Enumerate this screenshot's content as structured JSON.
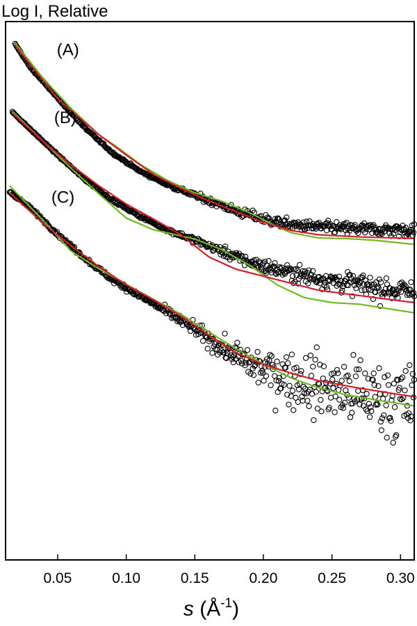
{
  "chart_data": {
    "type": "scatter",
    "title": "",
    "ylabel": "Log I, Relative",
    "xlabel": {
      "symbol": "s",
      "unit_open": " (Å",
      "unit_exp": "-1",
      "unit_close": ")"
    },
    "xlim": [
      0.012,
      0.31
    ],
    "ylim_relative": [
      0,
      1
    ],
    "log_y": true,
    "y_tick_labels_shown": false,
    "grid": false,
    "legend": "none",
    "x_ticks": [
      0.05,
      0.1,
      0.15,
      0.2,
      0.25,
      0.3
    ],
    "x_tick_labels": [
      "0.05",
      "0.10",
      "0.15",
      "0.20",
      "0.25",
      "0.30"
    ],
    "colors": {
      "data_markers": "#000000",
      "red_fit": "#d81b2b",
      "green_fit": "#6dbb1f"
    },
    "series": [
      {
        "label": "(A)",
        "s_start": 0.019,
        "data_start": 0.958,
        "data_profile": [
          [
            0.019,
            0.958
          ],
          [
            0.03,
            0.915
          ],
          [
            0.05,
            0.858
          ],
          [
            0.07,
            0.802
          ],
          [
            0.09,
            0.756
          ],
          [
            0.11,
            0.722
          ],
          [
            0.13,
            0.697
          ],
          [
            0.15,
            0.677
          ],
          [
            0.17,
            0.658
          ],
          [
            0.18,
            0.648
          ],
          [
            0.2,
            0.633
          ],
          [
            0.22,
            0.622
          ],
          [
            0.25,
            0.617
          ],
          [
            0.28,
            0.614
          ],
          [
            0.31,
            0.612
          ]
        ],
        "scatter_sd": [
          [
            0.019,
            0.001
          ],
          [
            0.12,
            0.002
          ],
          [
            0.16,
            0.005
          ],
          [
            0.2,
            0.008
          ],
          [
            0.25,
            0.009
          ],
          [
            0.31,
            0.011
          ]
        ],
        "red_fit": [
          [
            0.019,
            0.956
          ],
          [
            0.05,
            0.857
          ],
          [
            0.08,
            0.79
          ],
          [
            0.1,
            0.752
          ],
          [
            0.12,
            0.716
          ],
          [
            0.14,
            0.69
          ],
          [
            0.16,
            0.667
          ],
          [
            0.18,
            0.647
          ],
          [
            0.2,
            0.627
          ],
          [
            0.22,
            0.612
          ],
          [
            0.24,
            0.604
          ],
          [
            0.27,
            0.6
          ],
          [
            0.31,
            0.597
          ]
        ],
        "green_fit": [
          [
            0.019,
            0.96
          ],
          [
            0.04,
            0.893
          ],
          [
            0.06,
            0.838
          ],
          [
            0.08,
            0.79
          ],
          [
            0.095,
            0.764
          ],
          [
            0.11,
            0.735
          ],
          [
            0.13,
            0.705
          ],
          [
            0.15,
            0.682
          ],
          [
            0.17,
            0.666
          ],
          [
            0.19,
            0.645
          ],
          [
            0.21,
            0.619
          ],
          [
            0.22,
            0.608
          ],
          [
            0.24,
            0.598
          ],
          [
            0.26,
            0.597
          ],
          [
            0.28,
            0.594
          ],
          [
            0.31,
            0.586
          ]
        ]
      },
      {
        "label": "(B)",
        "s_start": 0.017,
        "data_start": 0.832,
        "data_profile": [
          [
            0.017,
            0.832
          ],
          [
            0.03,
            0.8
          ],
          [
            0.05,
            0.752
          ],
          [
            0.07,
            0.706
          ],
          [
            0.09,
            0.668
          ],
          [
            0.11,
            0.638
          ],
          [
            0.13,
            0.613
          ],
          [
            0.15,
            0.594
          ],
          [
            0.17,
            0.573
          ],
          [
            0.19,
            0.553
          ],
          [
            0.21,
            0.539
          ],
          [
            0.23,
            0.528
          ],
          [
            0.25,
            0.519
          ],
          [
            0.28,
            0.507
          ],
          [
            0.31,
            0.496
          ]
        ],
        "scatter_sd": [
          [
            0.017,
            0.001
          ],
          [
            0.12,
            0.002
          ],
          [
            0.16,
            0.006
          ],
          [
            0.2,
            0.011
          ],
          [
            0.25,
            0.015
          ],
          [
            0.31,
            0.02
          ]
        ],
        "red_fit": [
          [
            0.017,
            0.83
          ],
          [
            0.04,
            0.776
          ],
          [
            0.06,
            0.733
          ],
          [
            0.08,
            0.695
          ],
          [
            0.1,
            0.661
          ],
          [
            0.12,
            0.633
          ],
          [
            0.14,
            0.604
          ],
          [
            0.16,
            0.563
          ],
          [
            0.18,
            0.54
          ],
          [
            0.2,
            0.527
          ],
          [
            0.22,
            0.514
          ],
          [
            0.24,
            0.501
          ],
          [
            0.27,
            0.491
          ],
          [
            0.31,
            0.478
          ]
        ],
        "green_fit": [
          [
            0.017,
            0.833
          ],
          [
            0.04,
            0.776
          ],
          [
            0.06,
            0.727
          ],
          [
            0.08,
            0.68
          ],
          [
            0.1,
            0.635
          ],
          [
            0.12,
            0.613
          ],
          [
            0.14,
            0.602
          ],
          [
            0.15,
            0.596
          ],
          [
            0.17,
            0.576
          ],
          [
            0.19,
            0.547
          ],
          [
            0.21,
            0.511
          ],
          [
            0.23,
            0.487
          ],
          [
            0.25,
            0.478
          ],
          [
            0.27,
            0.475
          ],
          [
            0.29,
            0.467
          ],
          [
            0.31,
            0.459
          ]
        ]
      },
      {
        "label": "(C)",
        "s_start": 0.015,
        "data_start": 0.684,
        "data_profile": [
          [
            0.015,
            0.684
          ],
          [
            0.03,
            0.654
          ],
          [
            0.05,
            0.605
          ],
          [
            0.07,
            0.56
          ],
          [
            0.09,
            0.52
          ],
          [
            0.11,
            0.49
          ],
          [
            0.13,
            0.46
          ],
          [
            0.15,
            0.428
          ],
          [
            0.17,
            0.393
          ],
          [
            0.19,
            0.364
          ],
          [
            0.21,
            0.345
          ],
          [
            0.23,
            0.33
          ],
          [
            0.25,
            0.318
          ],
          [
            0.28,
            0.303
          ],
          [
            0.31,
            0.29
          ]
        ],
        "scatter_sd": [
          [
            0.015,
            0.002
          ],
          [
            0.1,
            0.004
          ],
          [
            0.14,
            0.008
          ],
          [
            0.17,
            0.015
          ],
          [
            0.2,
            0.035
          ],
          [
            0.25,
            0.055
          ],
          [
            0.31,
            0.062
          ]
        ],
        "red_fit": [
          [
            0.015,
            0.682
          ],
          [
            0.04,
            0.624
          ],
          [
            0.06,
            0.583
          ],
          [
            0.08,
            0.545
          ],
          [
            0.1,
            0.511
          ],
          [
            0.12,
            0.483
          ],
          [
            0.14,
            0.453
          ],
          [
            0.16,
            0.418
          ],
          [
            0.18,
            0.385
          ],
          [
            0.2,
            0.363
          ],
          [
            0.22,
            0.347
          ],
          [
            0.24,
            0.333
          ],
          [
            0.27,
            0.319
          ],
          [
            0.31,
            0.303
          ]
        ],
        "green_fit": [
          [
            0.015,
            0.695
          ],
          [
            0.04,
            0.629
          ],
          [
            0.06,
            0.573
          ],
          [
            0.08,
            0.541
          ],
          [
            0.1,
            0.512
          ],
          [
            0.12,
            0.484
          ],
          [
            0.14,
            0.456
          ],
          [
            0.16,
            0.424
          ],
          [
            0.18,
            0.392
          ],
          [
            0.2,
            0.364
          ],
          [
            0.22,
            0.338
          ],
          [
            0.24,
            0.32
          ],
          [
            0.26,
            0.307
          ],
          [
            0.28,
            0.298
          ],
          [
            0.31,
            0.286
          ]
        ]
      }
    ]
  }
}
